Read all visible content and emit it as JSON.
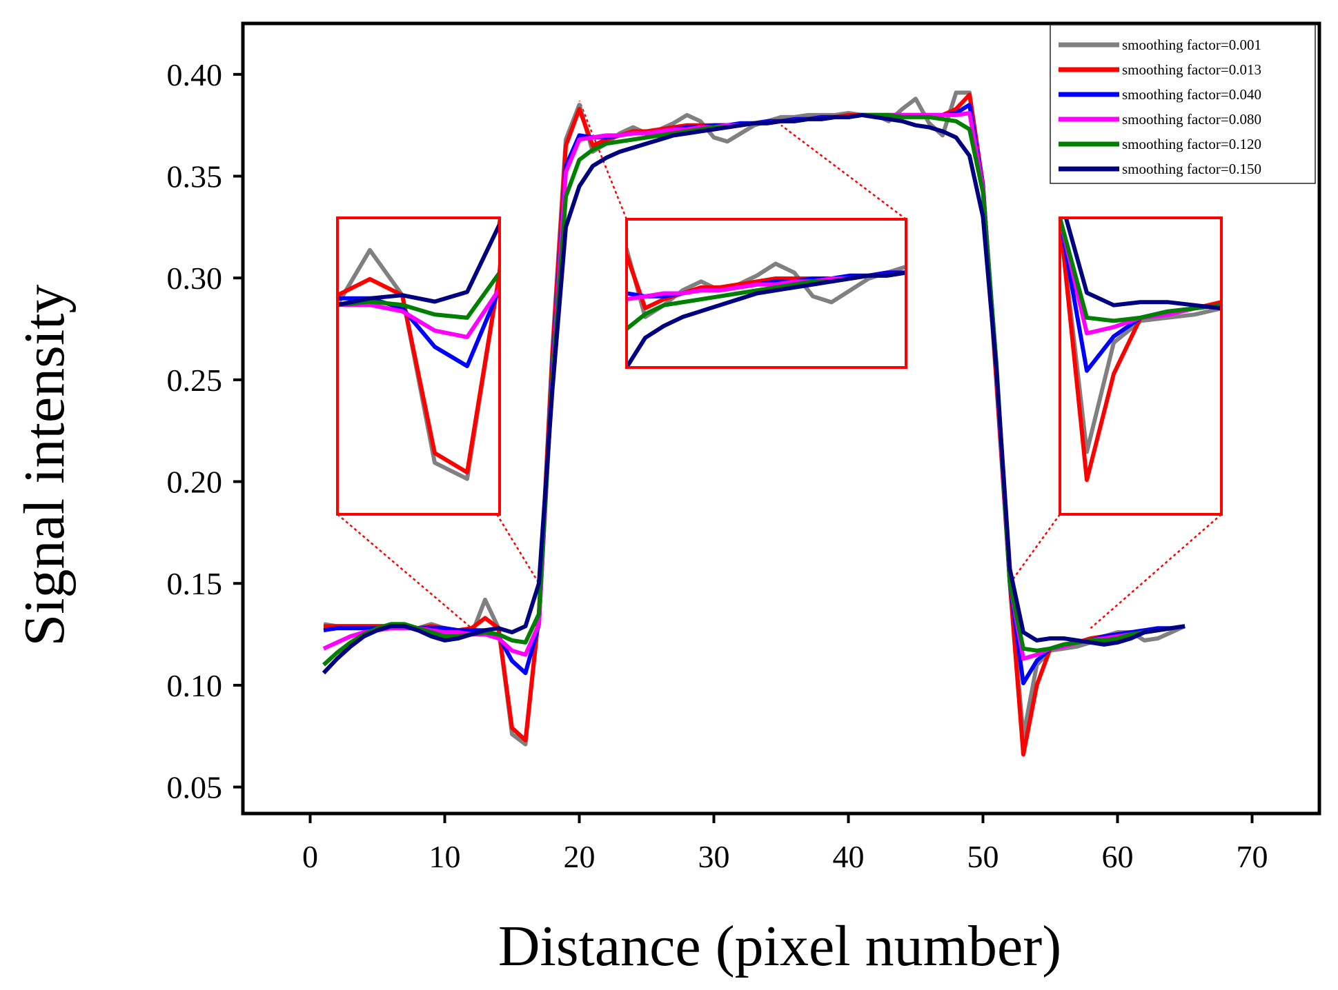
{
  "chart_data": {
    "type": "line",
    "title": "",
    "xlabel": "Distance (pixel number)",
    "ylabel": "Signal intensity",
    "xlim": [
      -5,
      75
    ],
    "ylim": [
      0.037,
      0.425
    ],
    "xticks": [
      0,
      10,
      20,
      30,
      40,
      50,
      60,
      70
    ],
    "xtick_labels": [
      "0",
      "10",
      "20",
      "30",
      "40",
      "50",
      "60",
      "70"
    ],
    "yticks": [
      0.05,
      0.1,
      0.15,
      0.2,
      0.25,
      0.3,
      0.35,
      0.4
    ],
    "ytick_labels": [
      "0.05",
      "0.10",
      "0.15",
      "0.20",
      "0.25",
      "0.30",
      "0.35",
      "0.40"
    ],
    "grid": false,
    "legend_position": "top-right",
    "x": [
      1,
      2,
      3,
      4,
      5,
      6,
      7,
      8,
      9,
      10,
      11,
      12,
      13,
      14,
      15,
      16,
      17,
      18,
      19,
      20,
      21,
      22,
      23,
      24,
      25,
      26,
      27,
      28,
      29,
      30,
      31,
      32,
      33,
      34,
      35,
      36,
      37,
      38,
      39,
      40,
      41,
      42,
      43,
      44,
      45,
      46,
      47,
      48,
      49,
      50,
      51,
      52,
      53,
      54,
      55,
      56,
      57,
      58,
      59,
      60,
      61,
      62,
      63,
      64,
      65
    ],
    "series": [
      {
        "name": "smoothing factor=0.001",
        "color": "#808080",
        "values": [
          0.13,
          0.129,
          0.129,
          0.129,
          0.129,
          0.129,
          0.129,
          0.128,
          0.13,
          0.128,
          0.126,
          0.125,
          0.142,
          0.128,
          0.076,
          0.071,
          0.135,
          0.265,
          0.368,
          0.385,
          0.362,
          0.366,
          0.371,
          0.374,
          0.371,
          0.373,
          0.376,
          0.38,
          0.377,
          0.369,
          0.367,
          0.371,
          0.375,
          0.377,
          0.379,
          0.379,
          0.38,
          0.38,
          0.38,
          0.381,
          0.38,
          0.38,
          0.377,
          0.383,
          0.388,
          0.376,
          0.37,
          0.391,
          0.391,
          0.345,
          0.248,
          0.15,
          0.075,
          0.11,
          0.117,
          0.118,
          0.119,
          0.121,
          0.124,
          0.126,
          0.126,
          0.122,
          0.123,
          0.126,
          0.129
        ]
      },
      {
        "name": "smoothing factor=0.013",
        "color": "#ff0000",
        "values": [
          0.129,
          0.129,
          0.129,
          0.129,
          0.129,
          0.129,
          0.129,
          0.128,
          0.129,
          0.128,
          0.127,
          0.128,
          0.133,
          0.128,
          0.079,
          0.073,
          0.135,
          0.262,
          0.365,
          0.383,
          0.365,
          0.368,
          0.37,
          0.372,
          0.372,
          0.373,
          0.374,
          0.375,
          0.375,
          0.375,
          0.375,
          0.375,
          0.376,
          0.377,
          0.377,
          0.378,
          0.378,
          0.379,
          0.379,
          0.38,
          0.38,
          0.38,
          0.38,
          0.38,
          0.38,
          0.38,
          0.38,
          0.383,
          0.39,
          0.346,
          0.25,
          0.15,
          0.066,
          0.1,
          0.118,
          0.119,
          0.121,
          0.123,
          0.124,
          0.125,
          0.126,
          0.126,
          0.127,
          0.128,
          0.129
        ]
      },
      {
        "name": "smoothing factor=0.040",
        "color": "#0000ff",
        "values": [
          0.127,
          0.128,
          0.128,
          0.128,
          0.128,
          0.128,
          0.128,
          0.128,
          0.128,
          0.128,
          0.127,
          0.127,
          0.127,
          0.124,
          0.112,
          0.106,
          0.13,
          0.255,
          0.355,
          0.37,
          0.369,
          0.369,
          0.37,
          0.371,
          0.371,
          0.372,
          0.373,
          0.374,
          0.374,
          0.375,
          0.375,
          0.376,
          0.376,
          0.377,
          0.377,
          0.378,
          0.378,
          0.379,
          0.379,
          0.379,
          0.38,
          0.38,
          0.38,
          0.38,
          0.38,
          0.38,
          0.38,
          0.381,
          0.385,
          0.345,
          0.255,
          0.15,
          0.101,
          0.112,
          0.118,
          0.12,
          0.121,
          0.122,
          0.124,
          0.125,
          0.126,
          0.127,
          0.128,
          0.128,
          0.129
        ]
      },
      {
        "name": "smoothing factor=0.080",
        "color": "#ff00ff",
        "values": [
          0.118,
          0.121,
          0.124,
          0.126,
          0.127,
          0.128,
          0.128,
          0.128,
          0.127,
          0.126,
          0.126,
          0.125,
          0.125,
          0.123,
          0.117,
          0.115,
          0.13,
          0.252,
          0.352,
          0.368,
          0.369,
          0.37,
          0.37,
          0.371,
          0.371,
          0.372,
          0.373,
          0.373,
          0.374,
          0.374,
          0.375,
          0.375,
          0.376,
          0.376,
          0.377,
          0.377,
          0.378,
          0.378,
          0.379,
          0.379,
          0.38,
          0.38,
          0.38,
          0.38,
          0.38,
          0.38,
          0.38,
          0.38,
          0.381,
          0.344,
          0.255,
          0.15,
          0.113,
          0.115,
          0.118,
          0.119,
          0.121,
          0.122,
          0.123,
          0.124,
          0.125,
          0.126,
          0.127,
          0.128,
          0.129
        ]
      },
      {
        "name": "smoothing factor=0.120",
        "color": "#008000",
        "values": [
          0.11,
          0.116,
          0.121,
          0.125,
          0.128,
          0.13,
          0.13,
          0.128,
          0.126,
          0.124,
          0.124,
          0.125,
          0.126,
          0.125,
          0.122,
          0.121,
          0.135,
          0.25,
          0.34,
          0.358,
          0.363,
          0.366,
          0.367,
          0.368,
          0.369,
          0.37,
          0.371,
          0.372,
          0.373,
          0.374,
          0.374,
          0.375,
          0.376,
          0.376,
          0.377,
          0.377,
          0.378,
          0.378,
          0.379,
          0.379,
          0.38,
          0.38,
          0.38,
          0.379,
          0.379,
          0.379,
          0.378,
          0.377,
          0.373,
          0.342,
          0.258,
          0.15,
          0.118,
          0.117,
          0.118,
          0.12,
          0.121,
          0.122,
          0.122,
          0.123,
          0.125,
          0.126,
          0.127,
          0.128,
          0.129
        ]
      },
      {
        "name": "smoothing factor=0.150",
        "color": "#000080",
        "values": [
          0.106,
          0.113,
          0.119,
          0.124,
          0.127,
          0.129,
          0.129,
          0.127,
          0.124,
          0.122,
          0.123,
          0.125,
          0.127,
          0.128,
          0.126,
          0.129,
          0.15,
          0.245,
          0.325,
          0.345,
          0.355,
          0.359,
          0.362,
          0.364,
          0.366,
          0.368,
          0.37,
          0.371,
          0.372,
          0.373,
          0.374,
          0.375,
          0.376,
          0.376,
          0.377,
          0.377,
          0.378,
          0.378,
          0.379,
          0.379,
          0.38,
          0.379,
          0.378,
          0.377,
          0.375,
          0.374,
          0.372,
          0.369,
          0.36,
          0.33,
          0.255,
          0.157,
          0.126,
          0.122,
          0.123,
          0.123,
          0.122,
          0.121,
          0.12,
          0.121,
          0.123,
          0.126,
          0.127,
          0.128,
          0.129
        ]
      }
    ],
    "insets": [
      {
        "name": "left",
        "source_xrange": [
          12,
          17
        ],
        "source_yrange": [
          0.06,
          0.152
        ]
      },
      {
        "name": "middle",
        "source_xrange": [
          20,
          35
        ],
        "source_yrange": [
          0.345,
          0.395
        ]
      },
      {
        "name": "right",
        "source_xrange": [
          52,
          58
        ],
        "source_yrange": [
          0.055,
          0.15
        ]
      }
    ],
    "colors": {
      "axes": "#000000",
      "inset_border": "#ff0000"
    }
  }
}
